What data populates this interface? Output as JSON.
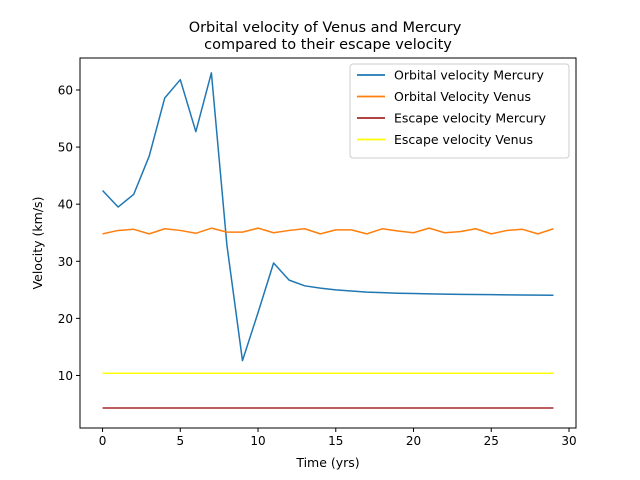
{
  "chart_data": {
    "type": "line",
    "title": [
      "Orbital velocity of Venus and Mercury",
      "compared to their escape velocity"
    ],
    "xlabel": "Time (yrs)",
    "ylabel": "Velocity (km/s)",
    "xlim": [
      -1.45,
      30.45
    ],
    "ylim": [
      0.8,
      65.6
    ],
    "xticks": [
      0,
      5,
      10,
      15,
      20,
      25,
      30
    ],
    "yticks": [
      10,
      20,
      30,
      40,
      50,
      60
    ],
    "grid": false,
    "legend_position": "top-right",
    "x": [
      0,
      1,
      2,
      3,
      4,
      5,
      6,
      7,
      8,
      9,
      10,
      11,
      12,
      13,
      14,
      15,
      16,
      17,
      18,
      19,
      20,
      21,
      22,
      23,
      24,
      25,
      26,
      27,
      28,
      29
    ],
    "series": [
      {
        "name": "Orbital velocity Mercury",
        "color": "#1f77b4",
        "values": [
          42.4,
          39.5,
          41.7,
          48.4,
          58.6,
          61.8,
          52.7,
          63.0,
          32.8,
          12.6,
          21.0,
          29.7,
          26.7,
          25.7,
          25.3,
          25.0,
          24.8,
          24.6,
          24.5,
          24.4,
          24.35,
          24.3,
          24.25,
          24.2,
          24.18,
          24.15,
          24.12,
          24.1,
          24.08,
          24.05
        ]
      },
      {
        "name": "Orbital Velocity Venus",
        "color": "#ff7f0e",
        "values": [
          34.8,
          35.4,
          35.6,
          34.8,
          35.7,
          35.4,
          34.9,
          35.8,
          35.1,
          35.1,
          35.8,
          35.0,
          35.4,
          35.7,
          34.8,
          35.5,
          35.5,
          34.8,
          35.7,
          35.3,
          35.0,
          35.8,
          35.0,
          35.2,
          35.7,
          34.8,
          35.4,
          35.6,
          34.8,
          35.7
        ]
      },
      {
        "name": "Escape velocity Mercury",
        "color": "#a52a2a",
        "values": [
          4.3,
          4.3,
          4.3,
          4.3,
          4.3,
          4.3,
          4.3,
          4.3,
          4.3,
          4.3,
          4.3,
          4.3,
          4.3,
          4.3,
          4.3,
          4.3,
          4.3,
          4.3,
          4.3,
          4.3,
          4.3,
          4.3,
          4.3,
          4.3,
          4.3,
          4.3,
          4.3,
          4.3,
          4.3,
          4.3
        ]
      },
      {
        "name": "Escape velocity Venus",
        "color": "#ffff00",
        "values": [
          10.4,
          10.4,
          10.4,
          10.4,
          10.4,
          10.4,
          10.4,
          10.4,
          10.4,
          10.4,
          10.4,
          10.4,
          10.4,
          10.4,
          10.4,
          10.4,
          10.4,
          10.4,
          10.4,
          10.4,
          10.4,
          10.4,
          10.4,
          10.4,
          10.4,
          10.4,
          10.4,
          10.4,
          10.4,
          10.4
        ]
      }
    ]
  }
}
